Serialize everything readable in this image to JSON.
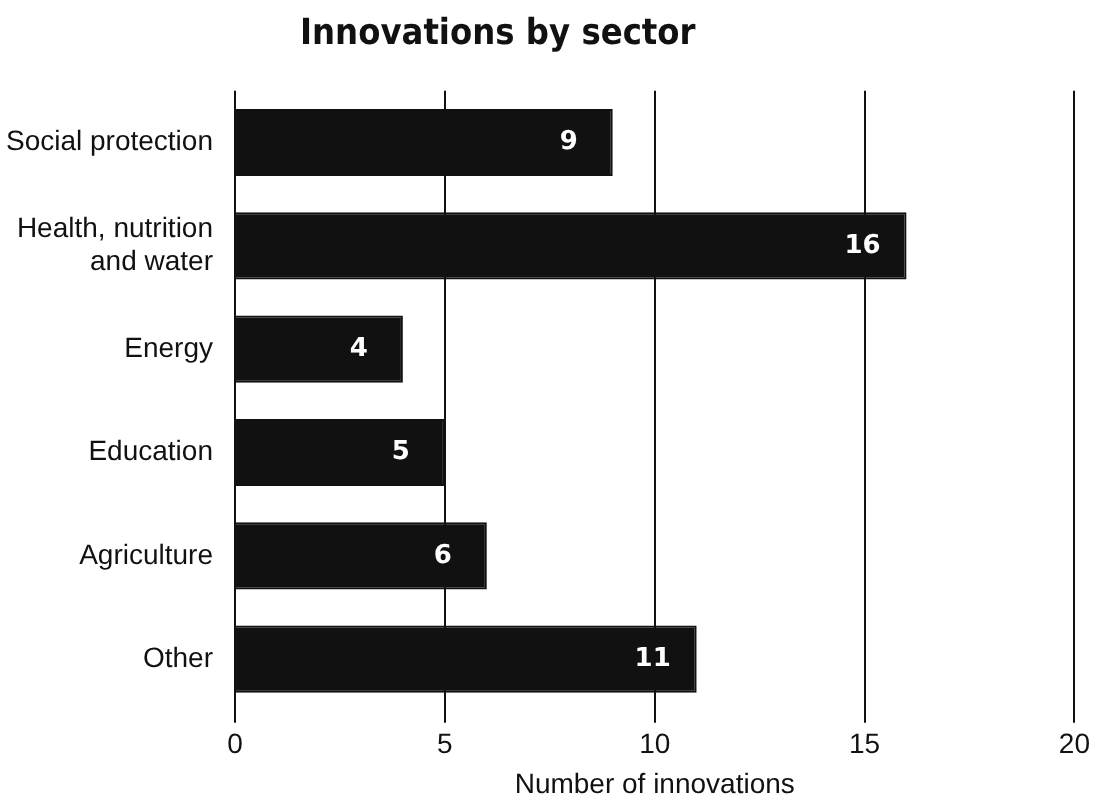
{
  "chart_data": {
    "type": "bar",
    "orientation": "horizontal",
    "title": "Innovations by sector",
    "xlabel": "Number of innovations",
    "categories": [
      "Social protection",
      "Health, nutrition\nand water",
      "Energy",
      "Education",
      "Agriculture",
      "Other"
    ],
    "values": [
      9,
      16,
      4,
      5,
      6,
      11
    ],
    "color": "#111111",
    "xlim": [
      0,
      20
    ],
    "xticks": [
      0,
      5,
      10,
      15,
      20
    ],
    "grid": "x",
    "data_labels": true
  }
}
